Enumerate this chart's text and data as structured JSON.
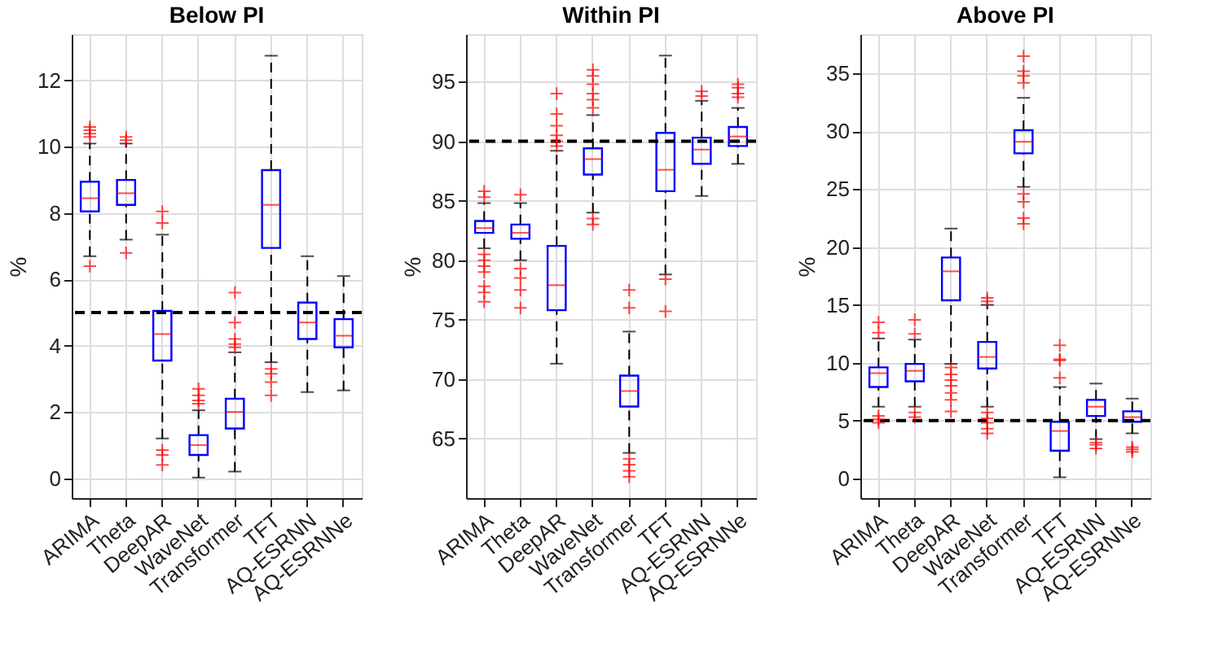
{
  "chart_data": [
    {
      "type": "box",
      "title": "Below PI",
      "ylabel": "%",
      "marker": "cross",
      "grid": true,
      "categories": [
        "ARIMA",
        "Theta",
        "DeepAR",
        "WaveNet",
        "Transformer",
        "TFT",
        "AQ-ESRNN",
        "AQ-ESRNNe"
      ],
      "boxes": [
        {
          "low": 6.7,
          "q1": 8.05,
          "median": 8.45,
          "q3": 8.95,
          "high": 10.1,
          "outliers": [
            6.4,
            10.3,
            10.4,
            10.5,
            10.6
          ]
        },
        {
          "low": 7.2,
          "q1": 8.25,
          "median": 8.6,
          "q3": 9.0,
          "high": 10.1,
          "outliers": [
            6.8,
            10.2,
            10.3
          ]
        },
        {
          "low": 1.2,
          "q1": 3.55,
          "median": 4.35,
          "q3": 5.05,
          "high": 7.35,
          "outliers": [
            0.4,
            0.7,
            0.85,
            7.7,
            8.05
          ]
        },
        {
          "low": 0.02,
          "q1": 0.7,
          "median": 1.0,
          "q3": 1.3,
          "high": 2.05,
          "outliers": [
            2.25,
            2.35,
            2.5,
            2.7
          ]
        },
        {
          "low": 0.2,
          "q1": 1.5,
          "median": 2.0,
          "q3": 2.4,
          "high": 3.8,
          "outliers": [
            3.95,
            4.05,
            4.2,
            4.7,
            5.6
          ]
        },
        {
          "low": 3.5,
          "q1": 6.95,
          "median": 8.25,
          "q3": 9.3,
          "high": 12.75,
          "outliers": [
            2.5,
            2.9,
            3.15,
            3.3
          ]
        },
        {
          "low": 2.6,
          "q1": 4.2,
          "median": 4.7,
          "q3": 5.3,
          "high": 6.7
        },
        {
          "low": 2.65,
          "q1": 3.95,
          "median": 4.3,
          "q3": 4.8,
          "high": 6.1
        }
      ],
      "ylim": [
        -0.6,
        13.4
      ],
      "yticks": [
        0,
        2,
        4,
        6,
        8,
        10,
        12
      ],
      "ref_lines": [
        {
          "axis": "y",
          "value": 5,
          "color": "#000000",
          "line_style": "dashed"
        }
      ]
    },
    {
      "type": "box",
      "title": "Within PI",
      "ylabel": "%",
      "marker": "cross",
      "grid": true,
      "categories": [
        "ARIMA",
        "Theta",
        "DeepAR",
        "WaveNet",
        "Transformer",
        "TFT",
        "AQ-ESRNN",
        "AQ-ESRNNe"
      ],
      "boxes": [
        {
          "low": 81.0,
          "q1": 82.3,
          "median": 82.7,
          "q3": 83.3,
          "high": 84.8,
          "outliers": [
            76.5,
            77.3,
            77.8,
            79,
            79.5,
            80,
            80.5,
            85.3,
            85.8
          ]
        },
        {
          "low": 80,
          "q1": 81.8,
          "median": 82.3,
          "q3": 83.0,
          "high": 84.8,
          "outliers": [
            76,
            77.5,
            78.5,
            79.3,
            85.5
          ]
        },
        {
          "low": 71.3,
          "q1": 75.8,
          "median": 77.9,
          "q3": 81.2,
          "high": 89.2,
          "outliers": [
            89.6,
            90,
            90.5,
            91.3,
            92.3,
            94
          ]
        },
        {
          "low": 84,
          "q1": 87.2,
          "median": 88.5,
          "q3": 89.4,
          "high": 92.2,
          "outliers": [
            83,
            83.5,
            92.8,
            93.5,
            94,
            94.8,
            95.5,
            96
          ]
        },
        {
          "low": 63.8,
          "q1": 67.7,
          "median": 69,
          "q3": 70.3,
          "high": 74,
          "outliers": [
            61.8,
            62.3,
            62.8,
            63.3,
            76,
            77.5
          ]
        },
        {
          "low": 78.8,
          "q1": 85.8,
          "median": 87.6,
          "q3": 90.7,
          "high": 97.2,
          "outliers": [
            75.7,
            78.4
          ]
        },
        {
          "low": 85.4,
          "q1": 88.1,
          "median": 89.3,
          "q3": 90.3,
          "high": 93.4,
          "outliers": [
            93.8,
            94.2
          ]
        },
        {
          "low": 88.1,
          "q1": 89.6,
          "median": 90.4,
          "q3": 91.2,
          "high": 92.8,
          "outliers": [
            93.7,
            94,
            94.5,
            94.8
          ]
        }
      ],
      "ylim": [
        60,
        99
      ],
      "yticks": [
        65,
        70,
        75,
        80,
        85,
        90,
        95
      ],
      "ref_lines": [
        {
          "axis": "y",
          "value": 90,
          "color": "#000000",
          "line_style": "dashed"
        }
      ]
    },
    {
      "type": "box",
      "title": "Above PI",
      "ylabel": "%",
      "marker": "cross",
      "grid": true,
      "categories": [
        "ARIMA",
        "Theta",
        "DeepAR",
        "WaveNet",
        "Transformer",
        "TFT",
        "AQ-ESRNN",
        "AQ-ESRNNe"
      ],
      "boxes": [
        {
          "low": 6.2,
          "q1": 7.9,
          "median": 9.1,
          "q3": 9.6,
          "high": 12.1,
          "outliers": [
            4.8,
            5.1,
            5.4,
            12.6,
            13.5
          ]
        },
        {
          "low": 6.2,
          "q1": 8.4,
          "median": 9.3,
          "q3": 9.9,
          "high": 12,
          "outliers": [
            5.3,
            5.7,
            12.5,
            13.7
          ]
        },
        {
          "low": 9.9,
          "q1": 15.4,
          "median": 17.9,
          "q3": 19.1,
          "high": 21.6,
          "outliers": [
            5.8,
            6.8,
            7.4,
            8,
            8.5,
            9,
            9.6
          ]
        },
        {
          "low": 6.2,
          "q1": 9.5,
          "median": 10.5,
          "q3": 11.8,
          "high": 15,
          "outliers": [
            3.9,
            4.3,
            4.8,
            5.2,
            5.7,
            15.3,
            15.6
          ]
        },
        {
          "low": 25.2,
          "q1": 28.1,
          "median": 29.1,
          "q3": 30.1,
          "high": 32.9,
          "outliers": [
            22,
            22.5,
            23.9,
            24.6,
            34.2,
            34.8,
            35.2,
            36.5
          ]
        },
        {
          "low": 0.1,
          "q1": 2.4,
          "median": 4.1,
          "q3": 4.9,
          "high": 7.9,
          "outliers": [
            8.7,
            10.2,
            10.3,
            11.5
          ]
        },
        {
          "low": 3.4,
          "q1": 5.4,
          "median": 6.2,
          "q3": 6.8,
          "high": 8.2,
          "outliers": [
            2.6,
            2.9,
            3.1
          ]
        },
        {
          "low": 3.9,
          "q1": 4.9,
          "median": 5.3,
          "q3": 5.8,
          "high": 6.9,
          "outliers": [
            2.3,
            2.5,
            2.7
          ]
        }
      ],
      "ylim": [
        -1.7,
        38.4
      ],
      "yticks": [
        0,
        5,
        10,
        15,
        20,
        25,
        30,
        35
      ],
      "ref_lines": [
        {
          "axis": "y",
          "value": 5,
          "color": "#000000",
          "line_style": "dashed"
        }
      ]
    }
  ]
}
